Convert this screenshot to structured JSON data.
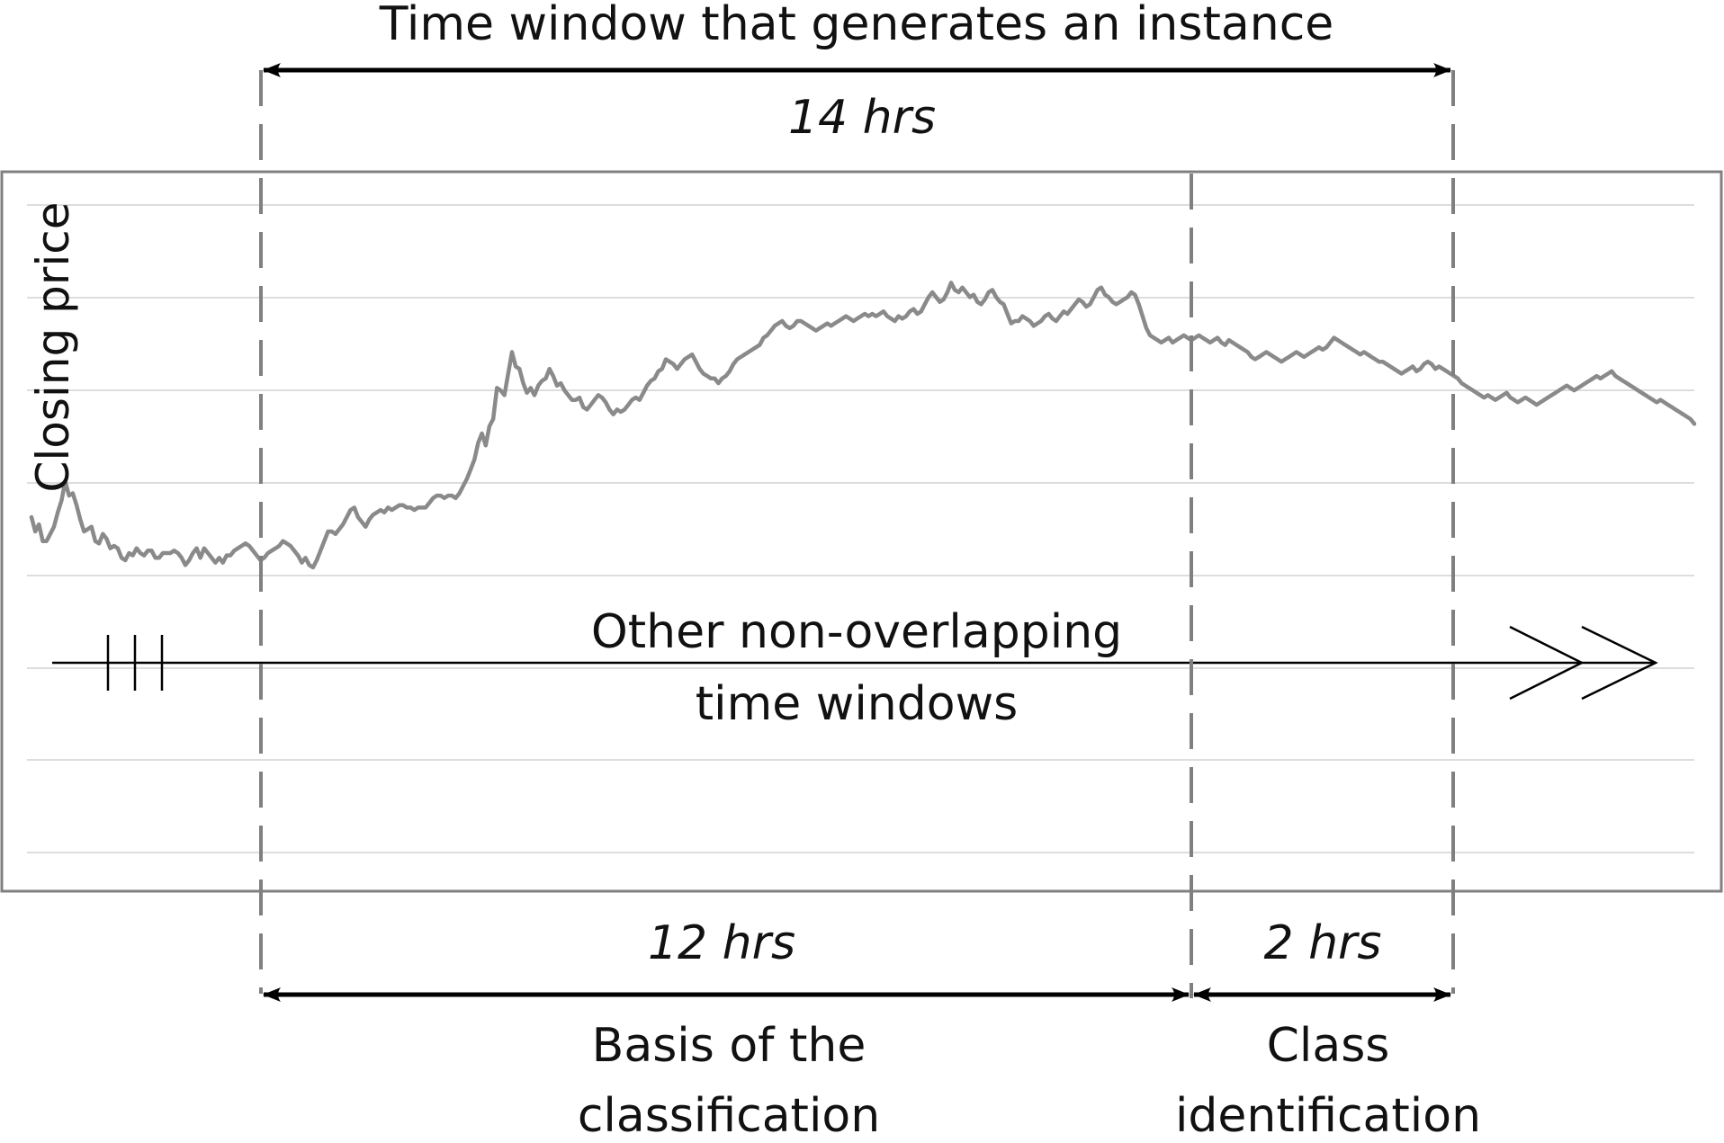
{
  "labels": {
    "top_title": "Time window that generates an instance",
    "top_duration": "14 hrs",
    "y_axis": "Closing price",
    "timeline_line1": "Other non-overlapping",
    "timeline_line2": "time windows",
    "left_duration": "12 hrs",
    "right_duration": "2 hrs",
    "left_caption_line1": "Basis of the",
    "left_caption_line2": "classification",
    "right_caption_line1": "Class",
    "right_caption_line2": "identification"
  },
  "colors": {
    "price_line": "#8a8a8a",
    "frame": "#808080",
    "gridline": "#dddddd",
    "dashed": "#808080",
    "arrow": "#000000",
    "text": "#111111"
  },
  "chart_data": {
    "type": "line",
    "series": [
      {
        "values": [
          62,
          56,
          59,
          52,
          52,
          55,
          58,
          64,
          69,
          77,
          71,
          72,
          67,
          61,
          56,
          57,
          58,
          52,
          51,
          55,
          53,
          49,
          50,
          49,
          45,
          44,
          47,
          46,
          49,
          47,
          46,
          48,
          48,
          45,
          45,
          47,
          47,
          47,
          48,
          47,
          45,
          42,
          44,
          47,
          49,
          45,
          49,
          47,
          45,
          43,
          45,
          43,
          46,
          46,
          48,
          49,
          50,
          51,
          50,
          48,
          46,
          44,
          45,
          47,
          48,
          49,
          50,
          52,
          51,
          50,
          48,
          46,
          43,
          45,
          42,
          41,
          44,
          48,
          52,
          56,
          56,
          55,
          57,
          59,
          62,
          65,
          66,
          62,
          60,
          58,
          61,
          63,
          64,
          65,
          64,
          66,
          65,
          66,
          67,
          67,
          66,
          66,
          65,
          66,
          66,
          66,
          68,
          70,
          71,
          71,
          70,
          71,
          71,
          70,
          72,
          75,
          78,
          82,
          86,
          93,
          97,
          92,
          100,
          103,
          116,
          115,
          113,
          122,
          131,
          125,
          124,
          118,
          114,
          116,
          113,
          117,
          119,
          120,
          124,
          121,
          117,
          118,
          115,
          113,
          111,
          111,
          112,
          108,
          107,
          109,
          111,
          113,
          112,
          110,
          107,
          105,
          107,
          106,
          107,
          109,
          111,
          112,
          111,
          114,
          117,
          119,
          120,
          123,
          124,
          128,
          127,
          126,
          124,
          126,
          128,
          129,
          130,
          127,
          124,
          122,
          121,
          120,
          120,
          118,
          120,
          121,
          123,
          126,
          128,
          129,
          130,
          131,
          132,
          133,
          134,
          137,
          138,
          140,
          142,
          143,
          144,
          142,
          141,
          142,
          144,
          144,
          143,
          142,
          141,
          140,
          141,
          142,
          143,
          142,
          143,
          144,
          145,
          146,
          145,
          144,
          145,
          146,
          147,
          146,
          147,
          146,
          147,
          148,
          146,
          145,
          144,
          146,
          145,
          146,
          148,
          149,
          147,
          148,
          151,
          154,
          156,
          154,
          152,
          153,
          156,
          160,
          157,
          156,
          158,
          156,
          154,
          155,
          152,
          151,
          153,
          156,
          157,
          154,
          152,
          151,
          147,
          143,
          144,
          144,
          146,
          145,
          144,
          142,
          143,
          144,
          146,
          147,
          145,
          144,
          146,
          148,
          147,
          149,
          151,
          153,
          152,
          150,
          151,
          154,
          157,
          158,
          155,
          154,
          152,
          151,
          152,
          153,
          154,
          156,
          155,
          151,
          146,
          141,
          138,
          137,
          136,
          135,
          136,
          137,
          135,
          136,
          137,
          138,
          137,
          136,
          137,
          138,
          137,
          136,
          135,
          136,
          137,
          135,
          134,
          136,
          135,
          134,
          133,
          132,
          131,
          129,
          128,
          129,
          130,
          131,
          130,
          129,
          128,
          127,
          128,
          129,
          130,
          131,
          130,
          129,
          130,
          131,
          132,
          133,
          132,
          133,
          135,
          137,
          136,
          135,
          134,
          133,
          132,
          131,
          130,
          131,
          130,
          129,
          128,
          127,
          127,
          126,
          125,
          124,
          123,
          122,
          123,
          124,
          125,
          123,
          124,
          126,
          127,
          126,
          124,
          125,
          124,
          123,
          122,
          121,
          120,
          118,
          117,
          116,
          115,
          114,
          113,
          112,
          113,
          112,
          111,
          112,
          113,
          114,
          112,
          111,
          110,
          111,
          112,
          111,
          110,
          109,
          110,
          111,
          112,
          113,
          114,
          115,
          116,
          117,
          116,
          115,
          116,
          117,
          118,
          119,
          120,
          121,
          120,
          121,
          122,
          123,
          121,
          120,
          119,
          118,
          117,
          116,
          115,
          114,
          113,
          112,
          111,
          110,
          111,
          110,
          109,
          108,
          107,
          106,
          105,
          104,
          103,
          101
        ]
      }
    ],
    "grid": true,
    "legend": "none"
  }
}
